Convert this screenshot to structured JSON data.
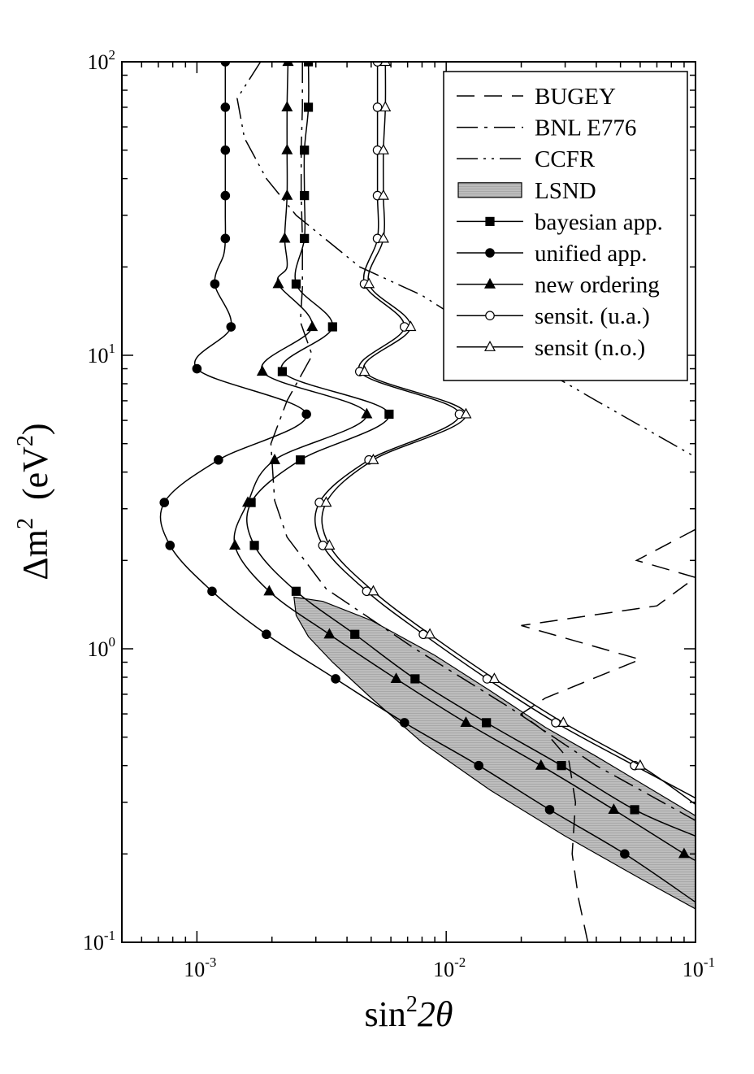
{
  "chart_data": {
    "type": "line",
    "x_scale": "log",
    "y_scale": "log",
    "xlim": [
      0.0005,
      0.1
    ],
    "ylim": [
      0.1,
      100
    ],
    "xlabel_base": "sin",
    "xlabel_sup": "2",
    "xlabel_tail": "2θ",
    "ylabel_base": "Δm",
    "ylabel_sup": "2",
    "ylabel_unit_open": "(eV",
    "ylabel_unit_sup": "2",
    "ylabel_unit_close": ")",
    "x_ticks": [
      {
        "base": "10",
        "exp": "-3",
        "value": 0.001
      },
      {
        "base": "10",
        "exp": "-2",
        "value": 0.01
      },
      {
        "base": "10",
        "exp": "-1",
        "value": 0.1
      }
    ],
    "y_ticks": [
      {
        "base": "10",
        "exp": "-1",
        "value": 0.1
      },
      {
        "base": "10",
        "exp": "0",
        "value": 1
      },
      {
        "base": "10",
        "exp": "1",
        "value": 10
      },
      {
        "base": "10",
        "exp": "2",
        "value": 100
      }
    ],
    "grid": false,
    "legend_position": "top-right",
    "legend": [
      {
        "label": "BUGEY",
        "style": "dashed"
      },
      {
        "label": "BNL E776",
        "style": "dashdot"
      },
      {
        "label": "CCFR",
        "style": "dashdotdot"
      },
      {
        "label": "LSND",
        "style": "shaded"
      },
      {
        "label": "bayesian app.",
        "style": "solid",
        "marker": "square"
      },
      {
        "label": "unified app.",
        "style": "solid",
        "marker": "circle"
      },
      {
        "label": "new ordering",
        "style": "solid",
        "marker": "triangle"
      },
      {
        "label": "sensit. (u.a.)",
        "style": "solid",
        "marker": "circle-open"
      },
      {
        "label": "sensit (n.o.)",
        "style": "solid",
        "marker": "triangle-open"
      }
    ],
    "lsnd_region": [
      [
        0.00245,
        1.5
      ],
      [
        0.0032,
        1.45
      ],
      [
        0.005,
        1.25
      ],
      [
        0.009,
        0.95
      ],
      [
        0.015,
        0.72
      ],
      [
        0.025,
        0.54
      ],
      [
        0.04,
        0.43
      ],
      [
        0.06,
        0.35
      ],
      [
        0.1,
        0.27
      ],
      [
        0.1,
        0.13
      ],
      [
        0.06,
        0.165
      ],
      [
        0.03,
        0.23
      ],
      [
        0.015,
        0.33
      ],
      [
        0.008,
        0.48
      ],
      [
        0.005,
        0.68
      ],
      [
        0.0035,
        0.9
      ],
      [
        0.0028,
        1.1
      ],
      [
        0.0025,
        1.3
      ]
    ],
    "series": [
      {
        "name": "unified app.",
        "marker": "circle",
        "x": [
          0.0013,
          0.0013,
          0.0013,
          0.0013,
          0.0013,
          0.0013,
          0.00128,
          0.00118,
          0.00137,
          0.001,
          0.00275,
          0.00122,
          0.00074,
          0.00078,
          0.00115,
          0.0019,
          0.0036,
          0.0068,
          0.0135,
          0.026,
          0.052,
          0.1
        ],
        "y": [
          100,
          70,
          50,
          35,
          30,
          25,
          22,
          17.5,
          12.5,
          9.0,
          6.3,
          4.4,
          3.15,
          2.25,
          1.57,
          1.12,
          0.79,
          0.56,
          0.4,
          0.283,
          0.2,
          0.137
        ],
        "markers_at": [
          0,
          1,
          2,
          3,
          5,
          7,
          8,
          9,
          10,
          11,
          12,
          13,
          14,
          15,
          16,
          17,
          18,
          19,
          20
        ]
      },
      {
        "name": "new ordering",
        "marker": "triangle",
        "x": [
          0.00232,
          0.0023,
          0.0023,
          0.0023,
          0.00225,
          0.0023,
          0.00212,
          0.0029,
          0.00183,
          0.0048,
          0.00205,
          0.0016,
          0.00142,
          0.00195,
          0.0034,
          0.0063,
          0.012,
          0.024,
          0.047,
          0.09,
          0.1
        ],
        "y": [
          100,
          70,
          50,
          35,
          25,
          20,
          17.5,
          12.5,
          8.8,
          6.3,
          4.4,
          3.15,
          2.25,
          1.57,
          1.12,
          0.79,
          0.56,
          0.4,
          0.283,
          0.2,
          0.19
        ],
        "markers_at": [
          0,
          1,
          2,
          3,
          4,
          6,
          7,
          8,
          9,
          10,
          11,
          12,
          13,
          14,
          15,
          16,
          17,
          18,
          19
        ]
      },
      {
        "name": "bayesian app.",
        "marker": "square",
        "x": [
          0.0028,
          0.0028,
          0.0027,
          0.0027,
          0.0027,
          0.0025,
          0.0035,
          0.0022,
          0.0059,
          0.0026,
          0.00165,
          0.0017,
          0.0025,
          0.0043,
          0.0075,
          0.0145,
          0.029,
          0.057,
          0.1
        ],
        "y": [
          100,
          70,
          50,
          35,
          25,
          17.5,
          12.5,
          8.8,
          6.3,
          4.4,
          3.15,
          2.25,
          1.57,
          1.12,
          0.79,
          0.56,
          0.4,
          0.283,
          0.23
        ],
        "markers_at": [
          0,
          1,
          2,
          3,
          4,
          5,
          6,
          7,
          8,
          9,
          10,
          11,
          12,
          13,
          14,
          15,
          16,
          17
        ]
      },
      {
        "name": "sensit. (u.a.)",
        "marker": "circle-open",
        "x": [
          0.0053,
          0.0053,
          0.0053,
          0.0053,
          0.0053,
          0.0047,
          0.0068,
          0.0045,
          0.0113,
          0.0049,
          0.0031,
          0.0032,
          0.0048,
          0.0081,
          0.0146,
          0.0275,
          0.057,
          0.1
        ],
        "y": [
          100,
          70,
          50,
          35,
          25,
          17.5,
          12.5,
          8.8,
          6.3,
          4.4,
          3.15,
          2.25,
          1.57,
          1.12,
          0.79,
          0.56,
          0.4,
          0.31
        ],
        "markers_at": [
          0,
          1,
          2,
          3,
          4,
          5,
          6,
          7,
          8,
          9,
          10,
          11,
          12,
          13,
          14,
          15,
          16
        ]
      },
      {
        "name": "sensit (n.o.)",
        "marker": "triangle-open",
        "x": [
          0.0057,
          0.0057,
          0.0056,
          0.0056,
          0.0056,
          0.0049,
          0.0072,
          0.0047,
          0.012,
          0.0051,
          0.0033,
          0.0034,
          0.0051,
          0.0086,
          0.0156,
          0.0295,
          0.06,
          0.1
        ],
        "y": [
          100,
          70,
          50,
          35,
          25,
          17.5,
          12.5,
          8.8,
          6.3,
          4.4,
          3.15,
          2.25,
          1.57,
          1.12,
          0.79,
          0.56,
          0.4,
          0.295
        ],
        "markers_at": [
          0,
          1,
          2,
          3,
          4,
          5,
          6,
          7,
          8,
          9,
          10,
          11,
          12,
          13,
          14,
          15,
          16
        ]
      },
      {
        "name": "BUGEY",
        "style": "dashed",
        "x": [
          0.037,
          0.034,
          0.032,
          0.033,
          0.031,
          0.025,
          0.02,
          0.025,
          0.06,
          0.02,
          0.07,
          0.1,
          0.058,
          0.1
        ],
        "y": [
          0.1,
          0.14,
          0.2,
          0.3,
          0.42,
          0.52,
          0.6,
          0.68,
          0.92,
          1.2,
          1.4,
          1.75,
          2.0,
          2.55
        ]
      },
      {
        "name": "BNL E776",
        "style": "dashdot",
        "x": [
          0.00265,
          0.00265,
          0.00262,
          0.00262,
          0.00265,
          0.00265,
          0.0026,
          0.0029,
          0.0023,
          0.00198,
          0.00205,
          0.0023,
          0.0033,
          0.0075,
          0.018,
          0.04,
          0.1
        ],
        "y": [
          100,
          70,
          50,
          35,
          25,
          17,
          13,
          10,
          7.0,
          5.0,
          3.2,
          2.4,
          1.6,
          1.0,
          0.63,
          0.4,
          0.26
        ]
      },
      {
        "name": "CCFR",
        "style": "dashdotdot",
        "x": [
          0.0018,
          0.00145,
          0.00155,
          0.0019,
          0.0025,
          0.0045,
          0.008,
          0.016,
          0.04,
          0.1
        ],
        "y": [
          100,
          75,
          55,
          40,
          30,
          20,
          16,
          11,
          7,
          4.5
        ]
      }
    ]
  }
}
